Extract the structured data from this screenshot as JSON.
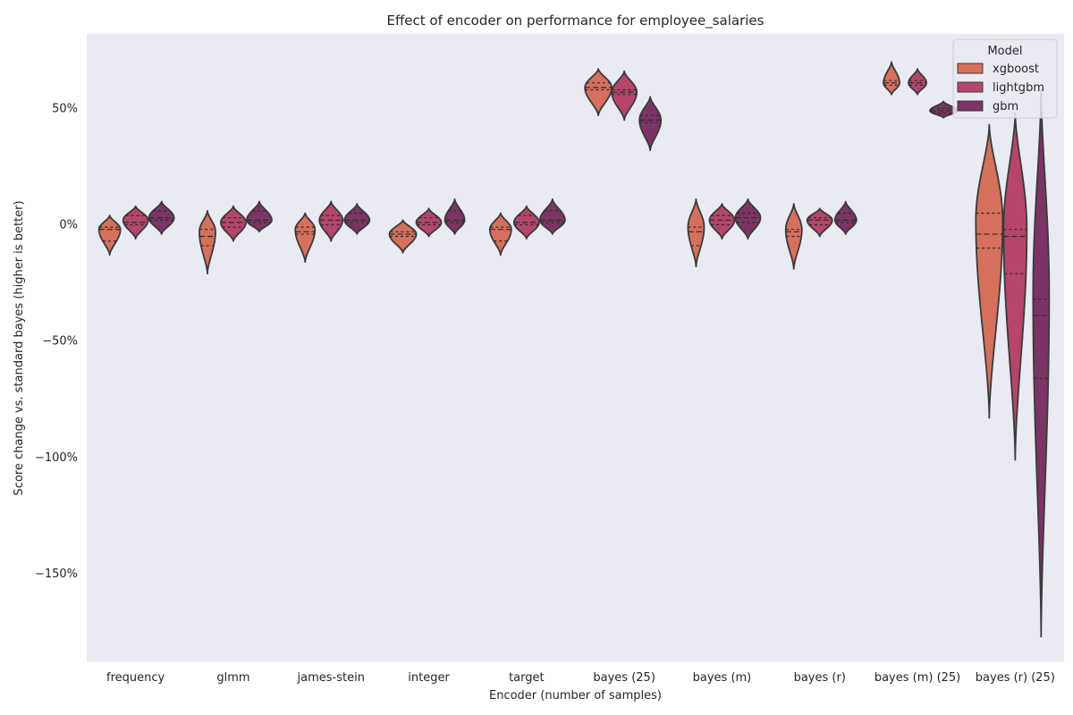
{
  "chart_data": {
    "type": "violin",
    "title": "Effect of encoder on performance for employee_salaries",
    "xlabel": "Encoder (number of samples)",
    "ylabel": "Score change vs. standard bayes (higher is better)",
    "ylim": [
      -1.88,
      0.82
    ],
    "yticks": [
      0.5,
      0.0,
      -0.5,
      -1.0,
      -1.5
    ],
    "ytick_labels": [
      "50%",
      "0%",
      "−50%",
      "−100%",
      "−150%"
    ],
    "grid": false,
    "background": "#eaeaf2",
    "legend": {
      "title": "Model",
      "placement": "top-right"
    },
    "categories": [
      "frequency",
      "glmm",
      "james-stein",
      "integer",
      "target",
      "bayes (25)",
      "bayes (m)",
      "bayes (r)",
      "bayes (m) (25)",
      "bayes (r) (25)"
    ],
    "series": [
      {
        "name": "xgboost",
        "color": "#d5705d",
        "violins": [
          {
            "min": -0.13,
            "max": 0.04,
            "peak": -0.02,
            "maxw": 12,
            "q1": -0.07,
            "med": -0.02,
            "q3": -0.01
          },
          {
            "min": -0.21,
            "max": 0.06,
            "peak": -0.03,
            "maxw": 9,
            "q1": -0.09,
            "med": -0.05,
            "q3": -0.02
          },
          {
            "min": -0.16,
            "max": 0.05,
            "peak": -0.02,
            "maxw": 11,
            "q1": -0.04,
            "med": -0.03,
            "q3": -0.01
          },
          {
            "min": -0.12,
            "max": 0.02,
            "peak": -0.04,
            "maxw": 15,
            "q1": -0.05,
            "med": -0.04,
            "q3": -0.03
          },
          {
            "min": -0.13,
            "max": 0.05,
            "peak": -0.02,
            "maxw": 12,
            "q1": -0.07,
            "med": -0.02,
            "q3": -0.01
          },
          {
            "min": 0.47,
            "max": 0.67,
            "peak": 0.59,
            "maxw": 15,
            "q1": 0.58,
            "med": 0.59,
            "q3": 0.61
          },
          {
            "min": -0.18,
            "max": 0.11,
            "peak": -0.01,
            "maxw": 9,
            "q1": -0.09,
            "med": -0.03,
            "q3": -0.01
          },
          {
            "min": -0.19,
            "max": 0.09,
            "peak": -0.02,
            "maxw": 9,
            "q1": -0.05,
            "med": -0.03,
            "q3": -0.02
          },
          {
            "min": 0.56,
            "max": 0.7,
            "peak": 0.61,
            "maxw": 9,
            "q1": 0.6,
            "med": 0.61,
            "q3": 0.62
          },
          {
            "min": -0.83,
            "max": 0.43,
            "peak": 0.02,
            "maxw": 15,
            "q1": -0.1,
            "med": -0.04,
            "q3": 0.05
          }
        ]
      },
      {
        "name": "lightgbm",
        "color": "#b5456b",
        "violins": [
          {
            "min": -0.06,
            "max": 0.08,
            "peak": 0.02,
            "maxw": 14,
            "q1": 0.0,
            "med": 0.01,
            "q3": 0.04
          },
          {
            "min": -0.07,
            "max": 0.08,
            "peak": 0.01,
            "maxw": 14,
            "q1": -0.01,
            "med": 0.01,
            "q3": 0.03
          },
          {
            "min": -0.07,
            "max": 0.1,
            "peak": 0.02,
            "maxw": 13,
            "q1": 0.0,
            "med": 0.02,
            "q3": 0.04
          },
          {
            "min": -0.05,
            "max": 0.07,
            "peak": 0.01,
            "maxw": 14,
            "q1": 0.0,
            "med": 0.01,
            "q3": 0.03
          },
          {
            "min": -0.06,
            "max": 0.08,
            "peak": 0.01,
            "maxw": 14,
            "q1": 0.0,
            "med": 0.01,
            "q3": 0.04
          },
          {
            "min": 0.45,
            "max": 0.66,
            "peak": 0.57,
            "maxw": 14,
            "q1": 0.56,
            "med": 0.57,
            "q3": 0.58
          },
          {
            "min": -0.06,
            "max": 0.09,
            "peak": 0.02,
            "maxw": 14,
            "q1": 0.0,
            "med": 0.02,
            "q3": 0.04
          },
          {
            "min": -0.05,
            "max": 0.07,
            "peak": 0.02,
            "maxw": 14,
            "q1": 0.0,
            "med": 0.02,
            "q3": 0.03
          },
          {
            "min": 0.56,
            "max": 0.67,
            "peak": 0.61,
            "maxw": 10,
            "q1": 0.6,
            "med": 0.61,
            "q3": 0.62
          },
          {
            "min": -1.01,
            "max": 0.48,
            "peak": -0.02,
            "maxw": 13,
            "q1": -0.21,
            "med": -0.05,
            "q3": -0.02
          }
        ]
      },
      {
        "name": "gbm",
        "color": "#7b3464",
        "violins": [
          {
            "min": -0.04,
            "max": 0.1,
            "peak": 0.03,
            "maxw": 14,
            "q1": 0.02,
            "med": 0.03,
            "q3": 0.06
          },
          {
            "min": -0.03,
            "max": 0.1,
            "peak": 0.02,
            "maxw": 14,
            "q1": 0.01,
            "med": 0.02,
            "q3": 0.06
          },
          {
            "min": -0.04,
            "max": 0.09,
            "peak": 0.02,
            "maxw": 14,
            "q1": 0.01,
            "med": 0.02,
            "q3": 0.05
          },
          {
            "min": -0.04,
            "max": 0.11,
            "peak": 0.02,
            "maxw": 11,
            "q1": 0.01,
            "med": 0.02,
            "q3": 0.06
          },
          {
            "min": -0.04,
            "max": 0.11,
            "peak": 0.02,
            "maxw": 14,
            "q1": 0.01,
            "med": 0.02,
            "q3": 0.06
          },
          {
            "min": 0.32,
            "max": 0.55,
            "peak": 0.45,
            "maxw": 12,
            "q1": 0.44,
            "med": 0.45,
            "q3": 0.47
          },
          {
            "min": -0.06,
            "max": 0.11,
            "peak": 0.03,
            "maxw": 14,
            "q1": 0.01,
            "med": 0.03,
            "q3": 0.05
          },
          {
            "min": -0.04,
            "max": 0.1,
            "peak": 0.02,
            "maxw": 12,
            "q1": 0.01,
            "med": 0.02,
            "q3": 0.05
          },
          {
            "min": 0.46,
            "max": 0.53,
            "peak": 0.49,
            "maxw": 15,
            "q1": 0.48,
            "med": 0.49,
            "q3": 0.5
          },
          {
            "min": -1.77,
            "max": 0.58,
            "peak": -0.3,
            "maxw": 9,
            "q1": -0.66,
            "med": -0.39,
            "q3": -0.32
          }
        ]
      }
    ]
  }
}
